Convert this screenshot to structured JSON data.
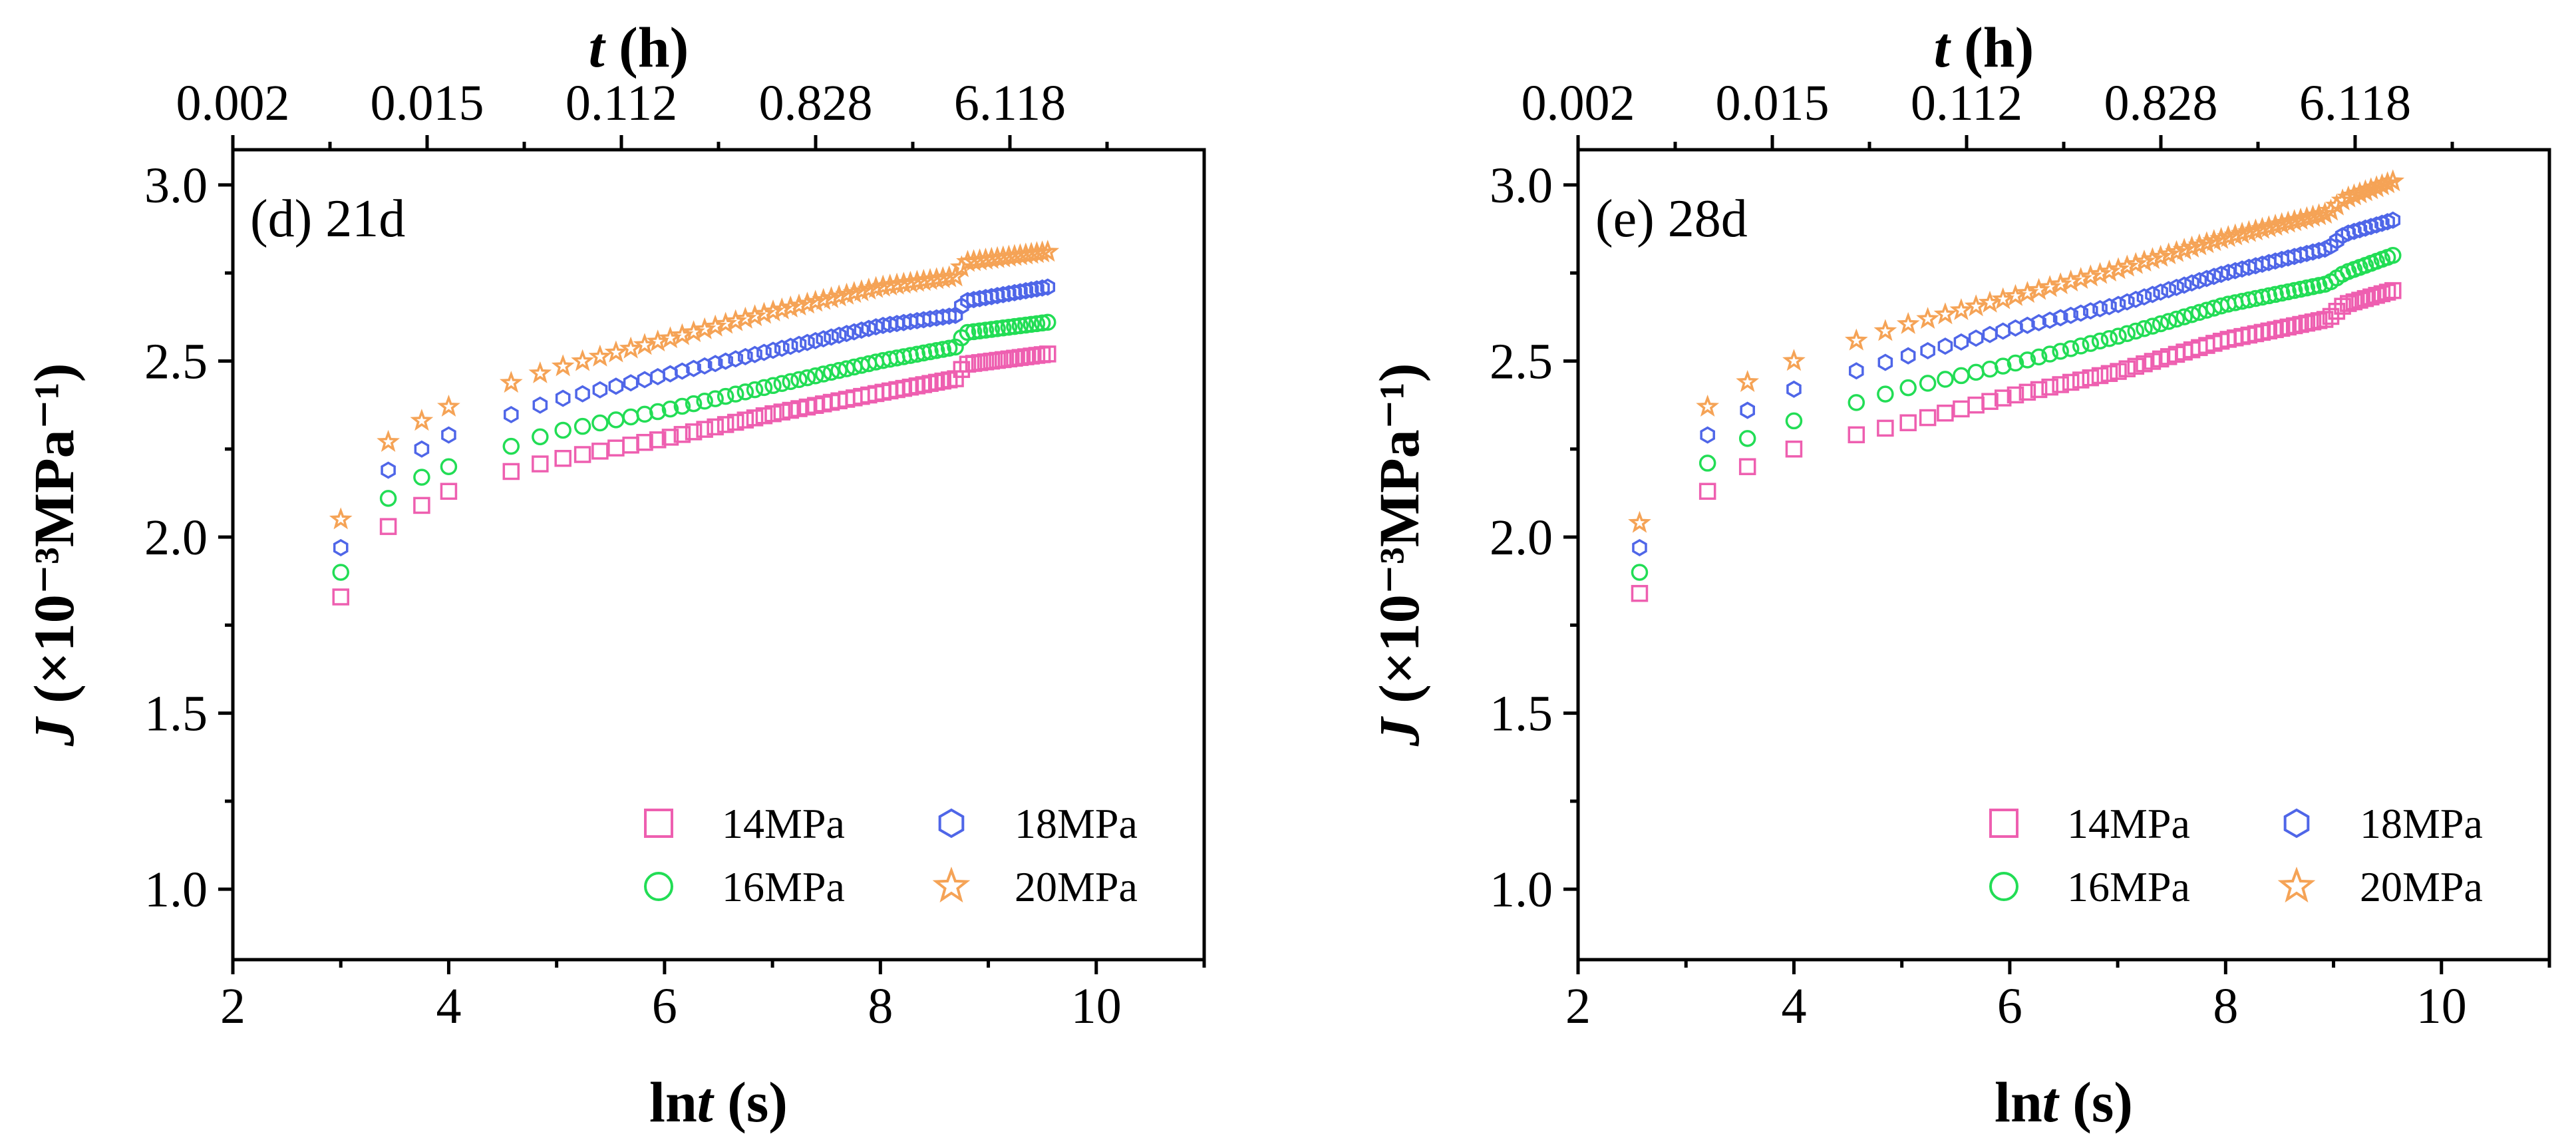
{
  "colors": {
    "14MPa": "#ee5fb0",
    "16MPa": "#22dd55",
    "18MPa": "#4f66e8",
    "20MPa": "#f5a356"
  },
  "chart_data": [
    {
      "type": "scatter",
      "panel_label": "(d) 21d",
      "xlabel": "lnt (s)",
      "ylabel": "J (×10⁻³MPa⁻¹)",
      "x2label": "t (h)",
      "xlim": [
        2,
        11
      ],
      "ylim": [
        0.8,
        3.1
      ],
      "xticks": [
        2,
        4,
        6,
        8,
        10
      ],
      "yticks": [
        1.0,
        1.5,
        2.0,
        2.5,
        3.0
      ],
      "x2ticks": [
        "0.002",
        "0.015",
        "0.112",
        "0.828",
        "6.118"
      ],
      "legend_position": "bottom-right",
      "grid": false,
      "series": [
        {
          "name": "14MPa",
          "marker": "square",
          "x_start": 3.0,
          "x_end": 9.55,
          "n": 65,
          "anchors": [
            [
              3.0,
              1.83
            ],
            [
              3.44,
              2.03
            ],
            [
              3.75,
              2.09
            ],
            [
              4.0,
              2.13
            ],
            [
              4.5,
              2.18
            ],
            [
              5.0,
              2.22
            ],
            [
              6.0,
              2.28
            ],
            [
              7.0,
              2.35
            ],
            [
              8.0,
              2.41
            ],
            [
              8.7,
              2.45
            ],
            [
              8.78,
              2.49
            ],
            [
              9.55,
              2.52
            ]
          ]
        },
        {
          "name": "16MPa",
          "marker": "circle",
          "x_start": 3.0,
          "x_end": 9.55,
          "n": 65,
          "anchors": [
            [
              3.0,
              1.9
            ],
            [
              3.44,
              2.11
            ],
            [
              3.75,
              2.17
            ],
            [
              4.0,
              2.2
            ],
            [
              4.5,
              2.25
            ],
            [
              5.0,
              2.3
            ],
            [
              6.0,
              2.36
            ],
            [
              7.0,
              2.43
            ],
            [
              8.0,
              2.5
            ],
            [
              8.7,
              2.54
            ],
            [
              8.78,
              2.58
            ],
            [
              9.55,
              2.61
            ]
          ]
        },
        {
          "name": "18MPa",
          "marker": "hexagon",
          "x_start": 3.0,
          "x_end": 9.55,
          "n": 65,
          "anchors": [
            [
              3.0,
              1.97
            ],
            [
              3.44,
              2.19
            ],
            [
              3.75,
              2.25
            ],
            [
              4.0,
              2.29
            ],
            [
              4.5,
              2.34
            ],
            [
              5.0,
              2.39
            ],
            [
              6.0,
              2.46
            ],
            [
              7.0,
              2.53
            ],
            [
              8.0,
              2.6
            ],
            [
              8.7,
              2.63
            ],
            [
              8.78,
              2.67
            ],
            [
              9.55,
              2.71
            ]
          ]
        },
        {
          "name": "20MPa",
          "marker": "star",
          "x_start": 3.0,
          "x_end": 9.55,
          "n": 65,
          "anchors": [
            [
              3.0,
              2.05
            ],
            [
              3.44,
              2.27
            ],
            [
              3.75,
              2.33
            ],
            [
              4.0,
              2.37
            ],
            [
              4.5,
              2.43
            ],
            [
              5.0,
              2.48
            ],
            [
              6.0,
              2.56
            ],
            [
              7.0,
              2.64
            ],
            [
              8.0,
              2.71
            ],
            [
              8.7,
              2.74
            ],
            [
              8.78,
              2.78
            ],
            [
              9.55,
              2.81
            ]
          ]
        }
      ]
    },
    {
      "type": "scatter",
      "panel_label": "(e) 28d",
      "xlabel": "lnt (s)",
      "ylabel": "J (×10⁻³MPa⁻¹)",
      "x2label": "t (h)",
      "xlim": [
        2,
        11
      ],
      "ylim": [
        0.8,
        3.1
      ],
      "xticks": [
        2,
        4,
        6,
        8,
        10
      ],
      "yticks": [
        1.0,
        1.5,
        2.0,
        2.5,
        3.0
      ],
      "x2ticks": [
        "0.002",
        "0.015",
        "0.112",
        "0.828",
        "6.118"
      ],
      "legend_position": "bottom-right",
      "grid": false,
      "series": [
        {
          "name": "14MPa",
          "marker": "square",
          "x_start": 2.57,
          "x_end": 9.55,
          "n": 65,
          "anchors": [
            [
              2.57,
              1.84
            ],
            [
              3.2,
              2.13
            ],
            [
              3.57,
              2.2
            ],
            [
              4.0,
              2.25
            ],
            [
              5.0,
              2.32
            ],
            [
              6.0,
              2.4
            ],
            [
              7.0,
              2.47
            ],
            [
              8.0,
              2.56
            ],
            [
              8.95,
              2.62
            ],
            [
              9.1,
              2.66
            ],
            [
              9.55,
              2.7
            ]
          ]
        },
        {
          "name": "16MPa",
          "marker": "circle",
          "x_start": 2.57,
          "x_end": 9.55,
          "n": 65,
          "anchors": [
            [
              2.57,
              1.9
            ],
            [
              3.2,
              2.21
            ],
            [
              3.57,
              2.28
            ],
            [
              4.0,
              2.33
            ],
            [
              5.0,
              2.42
            ],
            [
              6.0,
              2.49
            ],
            [
              7.0,
              2.57
            ],
            [
              8.0,
              2.66
            ],
            [
              8.95,
              2.72
            ],
            [
              9.1,
              2.75
            ],
            [
              9.55,
              2.8
            ]
          ]
        },
        {
          "name": "18MPa",
          "marker": "hexagon",
          "x_start": 2.57,
          "x_end": 9.55,
          "n": 65,
          "anchors": [
            [
              2.57,
              1.97
            ],
            [
              3.2,
              2.29
            ],
            [
              3.57,
              2.36
            ],
            [
              4.0,
              2.42
            ],
            [
              5.0,
              2.51
            ],
            [
              6.0,
              2.59
            ],
            [
              7.0,
              2.66
            ],
            [
              8.0,
              2.75
            ],
            [
              8.95,
              2.82
            ],
            [
              9.1,
              2.86
            ],
            [
              9.55,
              2.9
            ]
          ]
        },
        {
          "name": "20MPa",
          "marker": "star",
          "x_start": 2.57,
          "x_end": 9.55,
          "n": 65,
          "anchors": [
            [
              2.57,
              2.04
            ],
            [
              3.2,
              2.37
            ],
            [
              3.57,
              2.44
            ],
            [
              4.0,
              2.5
            ],
            [
              5.0,
              2.6
            ],
            [
              6.0,
              2.68
            ],
            [
              7.0,
              2.76
            ],
            [
              8.0,
              2.85
            ],
            [
              8.95,
              2.92
            ],
            [
              9.1,
              2.96
            ],
            [
              9.55,
              3.01
            ]
          ]
        }
      ]
    }
  ]
}
